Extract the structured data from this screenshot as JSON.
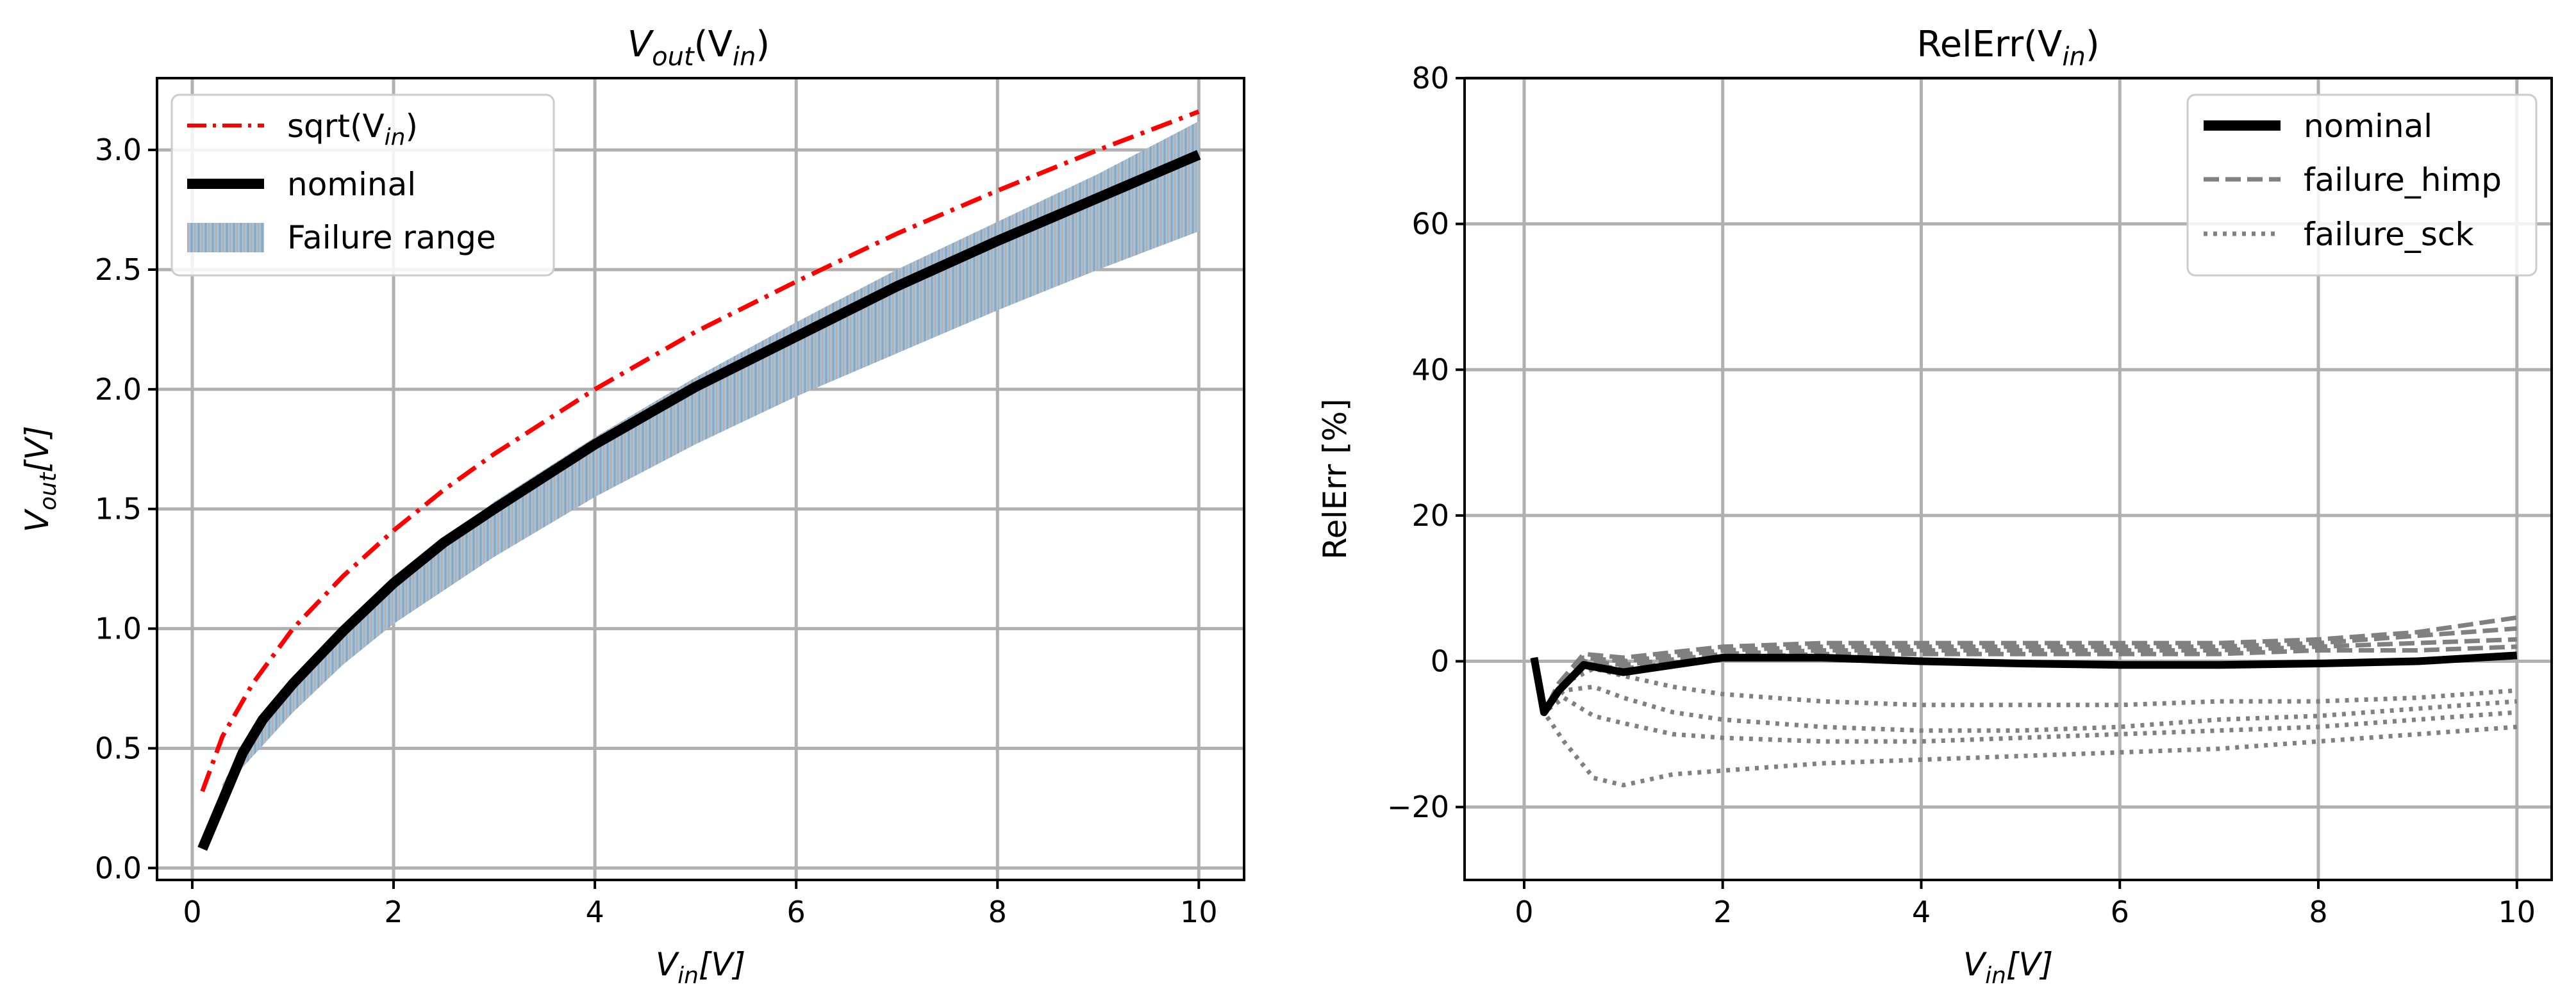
{
  "chart_data": [
    {
      "type": "line",
      "title": {
        "main": "V",
        "sub1": "out",
        "mid": "(V",
        "sub2": "in",
        "end": ")"
      },
      "xlabel": {
        "main": "V",
        "sub": "in",
        "end": "[V]"
      },
      "ylabel": {
        "main": "V",
        "sub": "out",
        "end": "[V]"
      },
      "xlim": [
        -0.35,
        10.45
      ],
      "ylim": [
        -0.05,
        3.3
      ],
      "xticks": [
        0,
        2,
        4,
        6,
        8,
        10
      ],
      "xtick_labels": [
        "0",
        "2",
        "4",
        "6",
        "8",
        "10"
      ],
      "yticks": [
        0.0,
        0.5,
        1.0,
        1.5,
        2.0,
        2.5,
        3.0
      ],
      "ytick_labels": [
        "0.0",
        "0.5",
        "1.0",
        "1.5",
        "2.0",
        "2.5",
        "3.0"
      ],
      "grid": true,
      "legend_position": "top-left",
      "legend": [
        {
          "label_main": "sqrt(V",
          "label_sub": "in",
          "label_end": ")",
          "style": "dashdot",
          "color": "#ff0000"
        },
        {
          "label_main": "nominal",
          "label_sub": "",
          "label_end": "",
          "style": "solid-thick",
          "color": "#000000"
        },
        {
          "label_main": "Failure range",
          "label_sub": "",
          "label_end": "",
          "style": "hatched-band",
          "color": "#9ec3e0"
        }
      ],
      "series": [
        {
          "name": "sqrt(Vin)",
          "color": "#ff0000",
          "x": [
            0.1,
            0.3,
            0.6,
            1,
            1.5,
            2,
            2.5,
            3,
            4,
            5,
            6,
            7,
            8,
            9,
            10
          ],
          "y": [
            0.32,
            0.55,
            0.77,
            1.0,
            1.22,
            1.41,
            1.58,
            1.73,
            2.0,
            2.24,
            2.45,
            2.65,
            2.83,
            3.0,
            3.16
          ]
        },
        {
          "name": "nominal",
          "color": "#000000",
          "x": [
            0.1,
            0.3,
            0.5,
            0.7,
            1,
            1.5,
            2,
            2.5,
            3,
            4,
            5,
            6,
            7,
            8,
            9,
            10
          ],
          "y": [
            0.08,
            0.28,
            0.48,
            0.62,
            0.77,
            0.99,
            1.19,
            1.36,
            1.5,
            1.77,
            2.01,
            2.22,
            2.43,
            2.62,
            2.8,
            2.98
          ]
        }
      ],
      "band": {
        "name": "Failure range",
        "color": "#9ec3e0",
        "x": [
          0.3,
          0.5,
          1,
          1.5,
          2,
          3,
          4,
          5,
          6,
          7,
          8,
          9,
          10
        ],
        "lower": [
          0.3,
          0.42,
          0.65,
          0.85,
          1.02,
          1.3,
          1.55,
          1.77,
          1.97,
          2.15,
          2.33,
          2.5,
          2.66
        ],
        "upper": [
          0.35,
          0.5,
          0.78,
          1.0,
          1.2,
          1.53,
          1.8,
          2.05,
          2.28,
          2.5,
          2.7,
          2.9,
          3.12
        ]
      }
    },
    {
      "type": "line",
      "title": {
        "main": "RelErr(V",
        "sub": "in",
        "end": ")"
      },
      "xlabel": {
        "main": "V",
        "sub": "in",
        "end": "[V]"
      },
      "ylabel": "RelErr [%]",
      "xlim": [
        -0.6,
        10.35
      ],
      "ylim": [
        -30,
        80
      ],
      "xticks": [
        0,
        2,
        4,
        6,
        8,
        10
      ],
      "xtick_labels": [
        "0",
        "2",
        "4",
        "6",
        "8",
        "10"
      ],
      "yticks": [
        -20,
        0,
        20,
        40,
        60,
        80
      ],
      "ytick_labels": [
        "−20",
        "0",
        "20",
        "40",
        "60",
        "80"
      ],
      "grid": true,
      "legend_position": "top-right",
      "legend": [
        {
          "label": "nominal",
          "style": "solid-thick",
          "color": "#000000"
        },
        {
          "label": "failure_himp",
          "style": "dashed",
          "color": "#808080"
        },
        {
          "label": "failure_sck",
          "style": "dotted",
          "color": "#808080"
        }
      ],
      "series": [
        {
          "name": "nominal",
          "group": "nominal",
          "color": "#000000",
          "x": [
            0.1,
            0.2,
            0.35,
            0.6,
            1,
            1.5,
            2,
            3,
            4,
            5,
            6,
            7,
            8,
            9,
            10
          ],
          "y": [
            0.5,
            -7,
            -4,
            -0.5,
            -1.5,
            -0.5,
            0.5,
            0.5,
            0,
            -0.3,
            -0.5,
            -0.5,
            -0.3,
            0,
            0.8
          ]
        },
        {
          "name": "failure_himp_1",
          "group": "failure_himp",
          "color": "#808080",
          "x": [
            0.1,
            0.2,
            0.35,
            0.6,
            1,
            2,
            3,
            4,
            5,
            6,
            7,
            8,
            9,
            10
          ],
          "y": [
            0.5,
            -7,
            -3,
            1,
            0.5,
            2,
            2.5,
            2.5,
            2.5,
            2.5,
            2.5,
            3,
            4,
            6
          ]
        },
        {
          "name": "failure_himp_2",
          "group": "failure_himp",
          "color": "#808080",
          "x": [
            0.1,
            0.2,
            0.35,
            0.6,
            1,
            2,
            3,
            4,
            5,
            6,
            7,
            8,
            9,
            10
          ],
          "y": [
            0.5,
            -7,
            -3,
            0.5,
            0,
            1.5,
            2,
            2,
            2,
            2,
            2,
            2.5,
            3.5,
            4.5
          ]
        },
        {
          "name": "failure_himp_3",
          "group": "failure_himp",
          "color": "#808080",
          "x": [
            0.1,
            0.2,
            0.35,
            0.6,
            1,
            2,
            3,
            4,
            5,
            6,
            7,
            8,
            9,
            10
          ],
          "y": [
            0.5,
            -7,
            -3.5,
            0,
            -0.5,
            1,
            1.5,
            1.5,
            1.5,
            1.5,
            1.5,
            2,
            2.5,
            3
          ]
        },
        {
          "name": "failure_himp_4",
          "group": "failure_himp",
          "color": "#808080",
          "x": [
            0.1,
            0.2,
            0.35,
            0.6,
            1,
            2,
            3,
            4,
            5,
            6,
            7,
            8,
            9,
            10
          ],
          "y": [
            0.5,
            -7,
            -4,
            -0.5,
            -1,
            0.5,
            1,
            1,
            1,
            1,
            1,
            1.5,
            1.5,
            2
          ]
        },
        {
          "name": "failure_sck_1",
          "group": "failure_sck",
          "color": "#808080",
          "x": [
            0.1,
            0.2,
            0.4,
            0.7,
            1,
            1.5,
            2,
            3,
            4,
            5,
            6,
            7,
            8,
            9,
            10
          ],
          "y": [
            0,
            -7,
            -11,
            -16,
            -17,
            -15.5,
            -15,
            -14,
            -13.5,
            -13,
            -12.5,
            -12,
            -11,
            -10,
            -9
          ]
        },
        {
          "name": "failure_sck_2",
          "group": "failure_sck",
          "color": "#808080",
          "x": [
            0.1,
            0.2,
            0.4,
            0.7,
            1,
            1.5,
            2,
            3,
            4,
            5,
            6,
            7,
            8,
            9,
            10
          ],
          "y": [
            0,
            -7,
            -5,
            -7.5,
            -8.5,
            -10,
            -10.5,
            -11,
            -11,
            -10.5,
            -10,
            -9.5,
            -9,
            -8,
            -7
          ]
        },
        {
          "name": "failure_sck_3",
          "group": "failure_sck",
          "color": "#808080",
          "x": [
            0.1,
            0.2,
            0.4,
            0.7,
            1,
            1.5,
            2,
            3,
            4,
            5,
            6,
            7,
            8,
            9,
            10
          ],
          "y": [
            0,
            -7,
            -4,
            -3.5,
            -5,
            -7,
            -8,
            -9,
            -9.5,
            -9.5,
            -9,
            -8,
            -7.5,
            -6.5,
            -5.5
          ]
        },
        {
          "name": "failure_sck_4",
          "group": "failure_sck",
          "color": "#808080",
          "x": [
            0.1,
            0.2,
            0.4,
            0.7,
            1,
            1.5,
            2,
            3,
            4,
            5,
            6,
            7,
            8,
            9,
            10
          ],
          "y": [
            0,
            -7,
            -3,
            -1,
            -2,
            -3.5,
            -4.5,
            -5.5,
            -6,
            -6,
            -6,
            -5.5,
            -5.5,
            -5,
            -4
          ]
        }
      ]
    }
  ]
}
